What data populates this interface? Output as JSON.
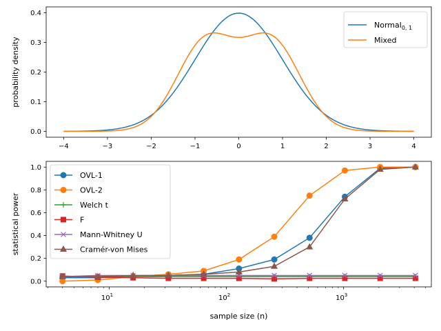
{
  "chart_data": [
    {
      "type": "line",
      "title": "",
      "xlabel": "",
      "ylabel": "probability density",
      "xlim": [
        -4.4,
        4.4
      ],
      "ylim": [
        -0.02,
        0.42
      ],
      "xticks": [
        -4,
        -3,
        -2,
        -1,
        0,
        1,
        2,
        3,
        4
      ],
      "xtick_labels": [
        "−4",
        "−3",
        "−2",
        "−1",
        "0",
        "1",
        "2",
        "3",
        "4"
      ],
      "yticks": [
        0.0,
        0.1,
        0.2,
        0.3,
        0.4
      ],
      "ytick_labels": [
        "0.0",
        "0.1",
        "0.2",
        "0.3",
        "0.4"
      ],
      "grid": false,
      "legend_position": "top-right",
      "series": [
        {
          "name": "Normal",
          "name_subscript": "0, 1",
          "color": "#1f77b4",
          "formula": "standard normal pdf",
          "x": [
            -4,
            -3.5,
            -3,
            -2.5,
            -2,
            -1.5,
            -1,
            -0.5,
            0,
            0.5,
            1,
            1.5,
            2,
            2.5,
            3,
            3.5,
            4
          ],
          "y": [
            0.0001,
            0.0009,
            0.0044,
            0.0175,
            0.054,
            0.1295,
            0.242,
            0.352,
            0.399,
            0.352,
            0.242,
            0.1295,
            0.054,
            0.0175,
            0.0044,
            0.0009,
            0.0001
          ]
        },
        {
          "name": "Mixed",
          "color": "#ff7f0e",
          "formula": "equal mixture of normals at ±0.75 with sd 0.66",
          "x": [
            -4,
            -3,
            -2.5,
            -2,
            -1.5,
            -1,
            -0.75,
            -0.5,
            0,
            0.5,
            0.75,
            1,
            1.5,
            2,
            2.5,
            3,
            4
          ],
          "y": [
            0.0,
            0.001,
            0.008,
            0.045,
            0.16,
            0.31,
            0.342,
            0.33,
            0.273,
            0.33,
            0.342,
            0.31,
            0.16,
            0.045,
            0.008,
            0.001,
            0.0
          ]
        }
      ]
    },
    {
      "type": "line",
      "title": "",
      "xlabel": "sample size (n)",
      "ylabel": "statistical power",
      "xscale": "log",
      "xlim": [
        2.9,
        5600
      ],
      "ylim": [
        -0.05,
        1.05
      ],
      "xticks": [
        10,
        100,
        1000
      ],
      "xtick_labels": [
        {
          "base": "10",
          "exp": "1"
        },
        {
          "base": "10",
          "exp": "2"
        },
        {
          "base": "10",
          "exp": "3"
        }
      ],
      "yticks": [
        0.0,
        0.2,
        0.4,
        0.6,
        0.8,
        1.0
      ],
      "ytick_labels": [
        "0.0",
        "0.2",
        "0.4",
        "0.6",
        "0.8",
        "1.0"
      ],
      "grid": false,
      "legend_position": "top-left",
      "x": [
        4,
        8,
        16,
        32,
        64,
        128,
        256,
        512,
        1024,
        2048,
        4096
      ],
      "series": [
        {
          "name": "OVL-1",
          "color": "#1f77b4",
          "marker": "circle",
          "values": [
            0.03,
            0.03,
            0.04,
            0.05,
            0.06,
            0.11,
            0.19,
            0.38,
            0.74,
            0.99,
            1.0
          ]
        },
        {
          "name": "OVL-2",
          "color": "#ff7f0e",
          "marker": "circle",
          "values": [
            0.0,
            0.01,
            0.04,
            0.06,
            0.09,
            0.19,
            0.39,
            0.75,
            0.97,
            1.0,
            1.0
          ]
        },
        {
          "name": "Welch t",
          "color": "#2ca02c",
          "marker": "plus",
          "values": [
            0.04,
            0.04,
            0.04,
            0.04,
            0.04,
            0.04,
            0.04,
            0.04,
            0.04,
            0.04,
            0.04
          ]
        },
        {
          "name": "F",
          "color": "#d62728",
          "marker": "square",
          "values": [
            0.045,
            0.035,
            0.03,
            0.025,
            0.025,
            0.025,
            0.02,
            0.025,
            0.025,
            0.025,
            0.025
          ]
        },
        {
          "name": "Mann-Whitney U",
          "color": "#9467bd",
          "marker": "x",
          "values": [
            0.04,
            0.05,
            0.05,
            0.05,
            0.05,
            0.05,
            0.05,
            0.05,
            0.05,
            0.05,
            0.05
          ]
        },
        {
          "name": "Cramér-von Mises",
          "color": "#8c564b",
          "marker": "triangle",
          "values": [
            0.04,
            0.04,
            0.05,
            0.05,
            0.06,
            0.08,
            0.13,
            0.3,
            0.72,
            0.98,
            1.0
          ]
        }
      ]
    }
  ]
}
